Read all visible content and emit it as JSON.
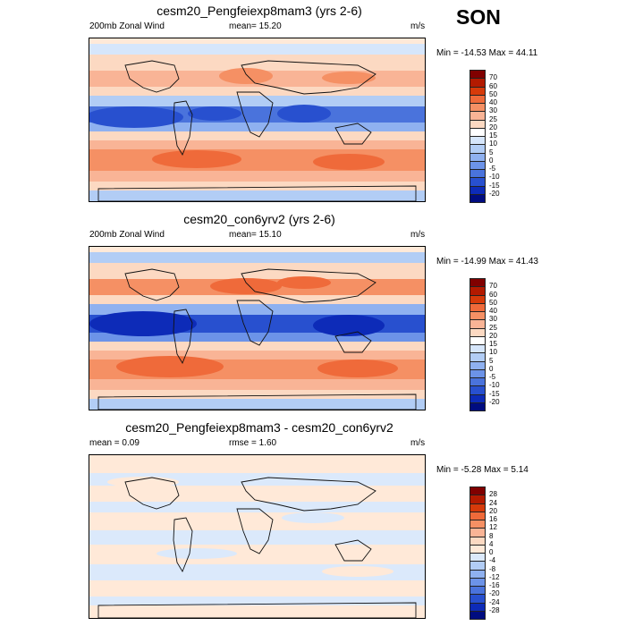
{
  "season": "SON",
  "panels": [
    {
      "title": "cesm20_Pengfeiexp8mam3 (yrs 2-6)",
      "left": "200mb Zonal Wind",
      "center": "mean=  15.20",
      "right": "m/s",
      "minmax": "Min = -14.53 Max =  44.11",
      "levels": [
        "70",
        "60",
        "50",
        "40",
        "30",
        "25",
        "20",
        "15",
        "10",
        "5",
        "0",
        "-5",
        "-10",
        "-15",
        "-20"
      ],
      "colors": [
        "#800000",
        "#b31a00",
        "#d63a0a",
        "#ef6a3a",
        "#f59064",
        "#f9b496",
        "#fcd9c2",
        "#ffffff",
        "#d6e6fb",
        "#b2cdf5",
        "#8fb1f0",
        "#6c93e8",
        "#4a73dc",
        "#2850cf",
        "#0d2bb8",
        "#000c80"
      ],
      "bands": [
        {
          "y": 6,
          "h": 12,
          "c": "#d6e6fb"
        },
        {
          "y": 18,
          "h": 18,
          "c": "#fcd9c2"
        },
        {
          "y": 36,
          "h": 18,
          "c": "#f9b496"
        },
        {
          "y": 54,
          "h": 10,
          "c": "#fcd9c2"
        },
        {
          "y": 64,
          "h": 12,
          "c": "#b2cdf5"
        },
        {
          "y": 76,
          "h": 18,
          "c": "#4a73dc"
        },
        {
          "y": 94,
          "h": 10,
          "c": "#8fb1f0"
        },
        {
          "y": 104,
          "h": 10,
          "c": "#fcd9c2"
        },
        {
          "y": 114,
          "h": 10,
          "c": "#f9b496"
        },
        {
          "y": 124,
          "h": 24,
          "c": "#f59064"
        },
        {
          "y": 148,
          "h": 12,
          "c": "#f9b496"
        },
        {
          "y": 160,
          "h": 10,
          "c": "#fcd9c2"
        },
        {
          "y": 170,
          "h": 12,
          "c": "#b2cdf5"
        }
      ],
      "blobs": [
        {
          "cx": 50,
          "cy": 88,
          "rx": 55,
          "ry": 12,
          "c": "#2850cf"
        },
        {
          "cx": 140,
          "cy": 84,
          "rx": 30,
          "ry": 8,
          "c": "#2850cf"
        },
        {
          "cx": 240,
          "cy": 84,
          "rx": 30,
          "ry": 10,
          "c": "#2850cf"
        },
        {
          "cx": 175,
          "cy": 42,
          "rx": 30,
          "ry": 9,
          "c": "#f59064"
        },
        {
          "cx": 290,
          "cy": 44,
          "rx": 30,
          "ry": 7,
          "c": "#f59064"
        },
        {
          "cx": 120,
          "cy": 135,
          "rx": 50,
          "ry": 10,
          "c": "#ef6a3a"
        },
        {
          "cx": 290,
          "cy": 138,
          "rx": 40,
          "ry": 9,
          "c": "#ef6a3a"
        }
      ]
    },
    {
      "title": "cesm20_con6yrv2 (yrs 2-6)",
      "left": "200mb Zonal Wind",
      "center": "mean=  15.10",
      "right": "m/s",
      "minmax": "Min = -14.99 Max =  41.43",
      "levels": [
        "70",
        "60",
        "50",
        "40",
        "30",
        "25",
        "20",
        "15",
        "10",
        "5",
        "0",
        "-5",
        "-10",
        "-15",
        "-20"
      ],
      "colors": [
        "#800000",
        "#b31a00",
        "#d63a0a",
        "#ef6a3a",
        "#f59064",
        "#f9b496",
        "#fcd9c2",
        "#ffffff",
        "#d6e6fb",
        "#b2cdf5",
        "#8fb1f0",
        "#6c93e8",
        "#4a73dc",
        "#2850cf",
        "#0d2bb8",
        "#000c80"
      ],
      "bands": [
        {
          "y": 6,
          "h": 12,
          "c": "#b2cdf5"
        },
        {
          "y": 18,
          "h": 18,
          "c": "#fcd9c2"
        },
        {
          "y": 36,
          "h": 18,
          "c": "#f59064"
        },
        {
          "y": 54,
          "h": 10,
          "c": "#fcd9c2"
        },
        {
          "y": 64,
          "h": 12,
          "c": "#8fb1f0"
        },
        {
          "y": 76,
          "h": 20,
          "c": "#2850cf"
        },
        {
          "y": 96,
          "h": 10,
          "c": "#6c93e8"
        },
        {
          "y": 106,
          "h": 10,
          "c": "#fcd9c2"
        },
        {
          "y": 116,
          "h": 10,
          "c": "#f9b496"
        },
        {
          "y": 126,
          "h": 22,
          "c": "#f59064"
        },
        {
          "y": 148,
          "h": 12,
          "c": "#f9b496"
        },
        {
          "y": 160,
          "h": 10,
          "c": "#fcd9c2"
        },
        {
          "y": 170,
          "h": 12,
          "c": "#b2cdf5"
        }
      ],
      "blobs": [
        {
          "cx": 60,
          "cy": 86,
          "rx": 60,
          "ry": 14,
          "c": "#0d2bb8"
        },
        {
          "cx": 290,
          "cy": 88,
          "rx": 40,
          "ry": 12,
          "c": "#0d2bb8"
        },
        {
          "cx": 175,
          "cy": 44,
          "rx": 40,
          "ry": 9,
          "c": "#ef6a3a"
        },
        {
          "cx": 240,
          "cy": 40,
          "rx": 30,
          "ry": 7,
          "c": "#ef6a3a"
        },
        {
          "cx": 90,
          "cy": 134,
          "rx": 60,
          "ry": 12,
          "c": "#ef6a3a"
        },
        {
          "cx": 300,
          "cy": 136,
          "rx": 45,
          "ry": 10,
          "c": "#ef6a3a"
        }
      ]
    },
    {
      "title": "cesm20_Pengfeiexp8mam3 - cesm20_con6yrv2",
      "left": "mean =   0.09",
      "center": "rmse =   1.60",
      "right": "m/s",
      "minmax": "Min = -5.28 Max =   5.14",
      "levels": [
        "28",
        "24",
        "20",
        "16",
        "12",
        "8",
        "4",
        "0",
        "-4",
        "-8",
        "-12",
        "-16",
        "-20",
        "-24",
        "-28"
      ],
      "colors": [
        "#800000",
        "#b31a00",
        "#d63a0a",
        "#ef6a3a",
        "#f59064",
        "#f9b496",
        "#fcd9c2",
        "#ffe9d8",
        "#dbe9fb",
        "#b2cdf5",
        "#8fb1f0",
        "#6c93e8",
        "#4a73dc",
        "#2850cf",
        "#0d2bb8",
        "#000c80"
      ],
      "bands": [
        {
          "y": 0,
          "h": 20,
          "c": "#ffe9d8"
        },
        {
          "y": 20,
          "h": 14,
          "c": "#dbe9fb"
        },
        {
          "y": 34,
          "h": 18,
          "c": "#ffe9d8"
        },
        {
          "y": 52,
          "h": 12,
          "c": "#dbe9fb"
        },
        {
          "y": 64,
          "h": 20,
          "c": "#ffe9d8"
        },
        {
          "y": 84,
          "h": 16,
          "c": "#dbe9fb"
        },
        {
          "y": 100,
          "h": 22,
          "c": "#ffe9d8"
        },
        {
          "y": 122,
          "h": 18,
          "c": "#dbe9fb"
        },
        {
          "y": 140,
          "h": 18,
          "c": "#ffe9d8"
        },
        {
          "y": 158,
          "h": 10,
          "c": "#dbe9fb"
        },
        {
          "y": 168,
          "h": 14,
          "c": "#ffe9d8"
        }
      ],
      "blobs": [
        {
          "cx": 60,
          "cy": 30,
          "rx": 40,
          "ry": 6,
          "c": "#ffe9d8"
        },
        {
          "cx": 250,
          "cy": 70,
          "rx": 35,
          "ry": 6,
          "c": "#dbe9fb"
        },
        {
          "cx": 120,
          "cy": 110,
          "rx": 45,
          "ry": 6,
          "c": "#dbe9fb"
        },
        {
          "cx": 300,
          "cy": 130,
          "rx": 40,
          "ry": 6,
          "c": "#ffe9d8"
        }
      ]
    }
  ]
}
